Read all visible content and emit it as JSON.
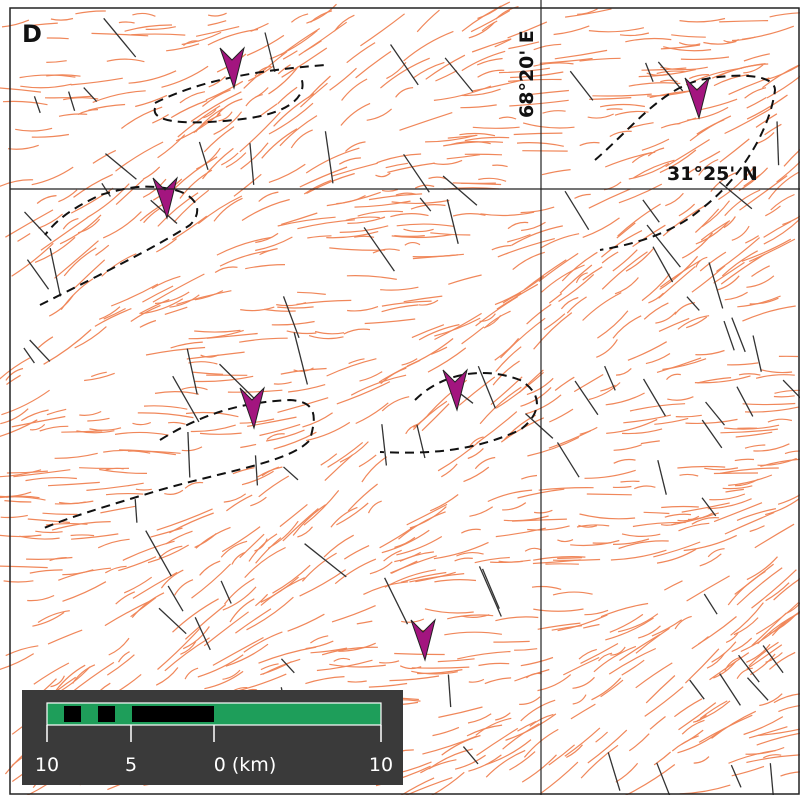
{
  "panel_label": "D",
  "graticule": {
    "longitude": "68°20' E",
    "latitude": "31°25' N"
  },
  "scale_bar": {
    "labels": [
      "10",
      "5",
      "0 (km)",
      "10"
    ]
  }
}
